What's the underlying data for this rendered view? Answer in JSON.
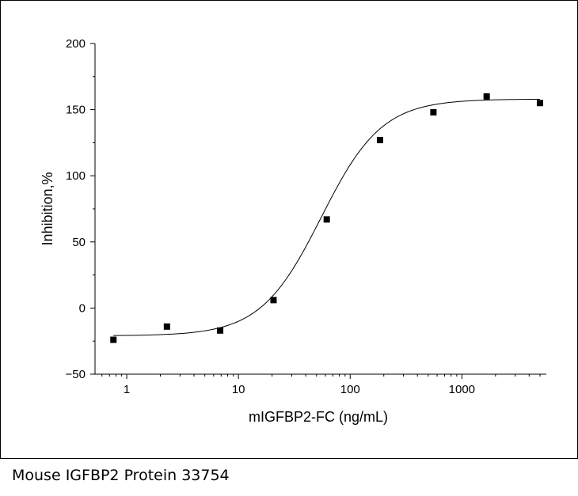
{
  "caption": "Mouse IGFBP2 Protein 33754",
  "chart_data": {
    "type": "scatter",
    "title": "",
    "xlabel": "mIGFBP2-FC (ng/mL)",
    "ylabel": "Inhibition,%",
    "xscale": "log",
    "xlim": [
      0.52,
      5700
    ],
    "ylim": [
      -50,
      200
    ],
    "xticks": [
      1,
      10,
      100,
      1000
    ],
    "xtick_labels": [
      "1",
      "10",
      "100",
      "1000"
    ],
    "yticks": [
      -50,
      0,
      50,
      100,
      150,
      200
    ],
    "ytick_labels": [
      "−50",
      "0",
      "50",
      "100",
      "150",
      "200"
    ],
    "grid": false,
    "legend": "none",
    "marker": "square",
    "marker_color": "#000000",
    "line_color": "#000000",
    "series": [
      {
        "x": [
          0.76,
          2.29,
          6.86,
          20.6,
          61.7,
          185,
          556,
          1667,
          5000
        ],
        "y": [
          -24,
          -14,
          -17,
          6,
          67,
          127,
          148,
          160,
          155
        ]
      }
    ],
    "fit": {
      "model": "4PL",
      "bottom": -21,
      "top": 158,
      "ec50": 55,
      "hill": 1.6
    }
  }
}
